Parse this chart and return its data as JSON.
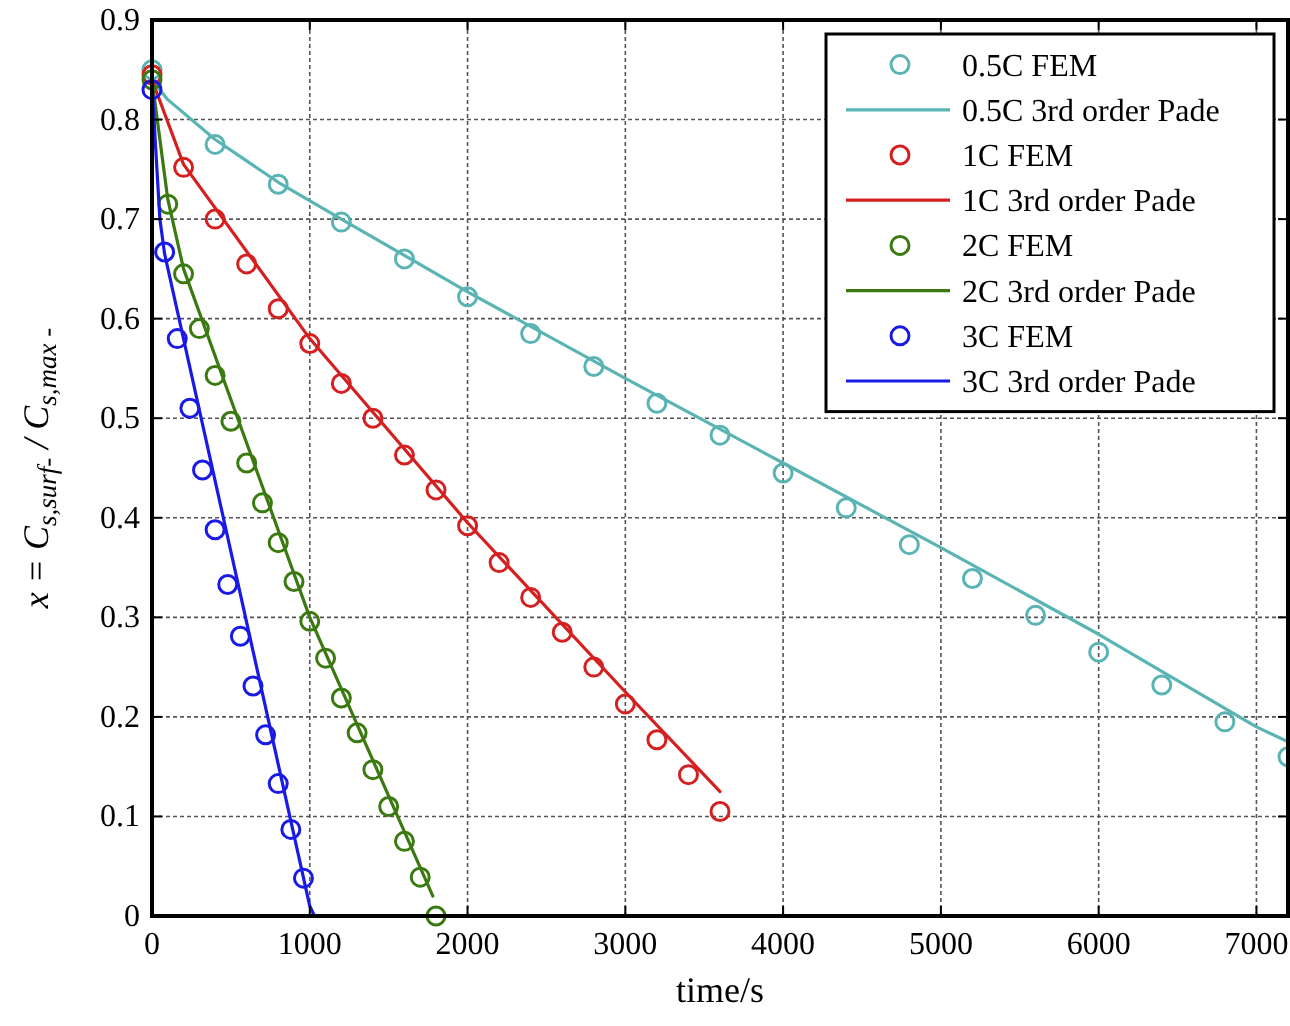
{
  "chart_data": {
    "type": "line",
    "xlabel": "time/s",
    "ylabel": "x = C$_{s,surf-}$ / C$_{s,max -}$",
    "xlim": [
      0,
      7200
    ],
    "ylim": [
      0,
      0.9
    ],
    "xticks": [
      0,
      1000,
      2000,
      3000,
      4000,
      5000,
      6000,
      7000
    ],
    "yticks": [
      0,
      0.1,
      0.2,
      0.3,
      0.4,
      0.5,
      0.6,
      0.7,
      0.8,
      0.9
    ],
    "grid": true,
    "legend": "top right",
    "series": [
      {
        "name": "0.5C FEM",
        "type": "scatter",
        "marker": "circle",
        "color": "#5bb4b4",
        "x": [
          0,
          400,
          800,
          1200,
          1600,
          2000,
          2400,
          2800,
          3200,
          3600,
          4000,
          4400,
          4800,
          5200,
          5600,
          6000,
          6400,
          6800,
          7200
        ],
        "values": [
          0.85,
          0.775,
          0.735,
          0.697,
          0.66,
          0.622,
          0.585,
          0.552,
          0.515,
          0.483,
          0.445,
          0.41,
          0.373,
          0.339,
          0.302,
          0.265,
          0.232,
          0.195,
          0.16
        ]
      },
      {
        "name": "0.5C 3rd order Pade",
        "marker": "none",
        "color": "#5bb4b4",
        "x": [
          0,
          100,
          400,
          800,
          1200,
          2000,
          3000,
          4000,
          5000,
          6000,
          7000,
          7200
        ],
        "values": [
          0.84,
          0.82,
          0.78,
          0.737,
          0.7,
          0.627,
          0.54,
          0.455,
          0.37,
          0.283,
          0.19,
          0.175
        ]
      },
      {
        "name": "1C FEM",
        "type": "scatter",
        "marker": "circle",
        "color": "#d42020",
        "x": [
          0,
          200,
          400,
          600,
          800,
          1000,
          1200,
          1400,
          1600,
          1800,
          2000,
          2200,
          2400,
          2600,
          2800,
          3000,
          3200,
          3400,
          3600
        ],
        "values": [
          0.845,
          0.752,
          0.7,
          0.655,
          0.61,
          0.575,
          0.535,
          0.5,
          0.463,
          0.428,
          0.392,
          0.355,
          0.32,
          0.285,
          0.25,
          0.213,
          0.177,
          0.142,
          0.105
        ]
      },
      {
        "name": "1C 3rd order Pade",
        "marker": "none",
        "color": "#d42020",
        "x": [
          0,
          200,
          1000,
          2000,
          3000,
          3600
        ],
        "values": [
          0.84,
          0.755,
          0.58,
          0.395,
          0.225,
          0.125
        ]
      },
      {
        "name": "2C FEM",
        "type": "scatter",
        "marker": "circle",
        "color": "#3a7a10",
        "x": [
          0,
          100,
          200,
          300,
          400,
          500,
          600,
          700,
          800,
          900,
          1000,
          1100,
          1200,
          1300,
          1400,
          1500,
          1600,
          1700,
          1800
        ],
        "values": [
          0.84,
          0.715,
          0.645,
          0.59,
          0.543,
          0.497,
          0.455,
          0.415,
          0.375,
          0.336,
          0.296,
          0.259,
          0.219,
          0.184,
          0.147,
          0.11,
          0.075,
          0.039,
          0
        ]
      },
      {
        "name": "2C 3rd order Pade",
        "marker": "none",
        "color": "#3a7a10",
        "x": [
          0,
          100,
          200,
          1000,
          1780
        ],
        "values": [
          0.84,
          0.72,
          0.65,
          0.3,
          0.02
        ]
      },
      {
        "name": "3C FEM",
        "type": "scatter",
        "marker": "circle",
        "color": "#1a1ae6",
        "x": [
          0,
          80,
          160,
          240,
          320,
          400,
          480,
          560,
          640,
          720,
          800,
          880,
          960
        ],
        "values": [
          0.83,
          0.667,
          0.58,
          0.51,
          0.448,
          0.388,
          0.333,
          0.281,
          0.231,
          0.182,
          0.133,
          0.087,
          0.038
        ]
      },
      {
        "name": "3C 3rd order Pade",
        "marker": "none",
        "color": "#1a1ae6",
        "x": [
          0,
          20,
          50,
          80,
          1000,
          1030
        ],
        "values": [
          0.84,
          0.78,
          0.7,
          0.665,
          0.01,
          0
        ]
      }
    ]
  }
}
